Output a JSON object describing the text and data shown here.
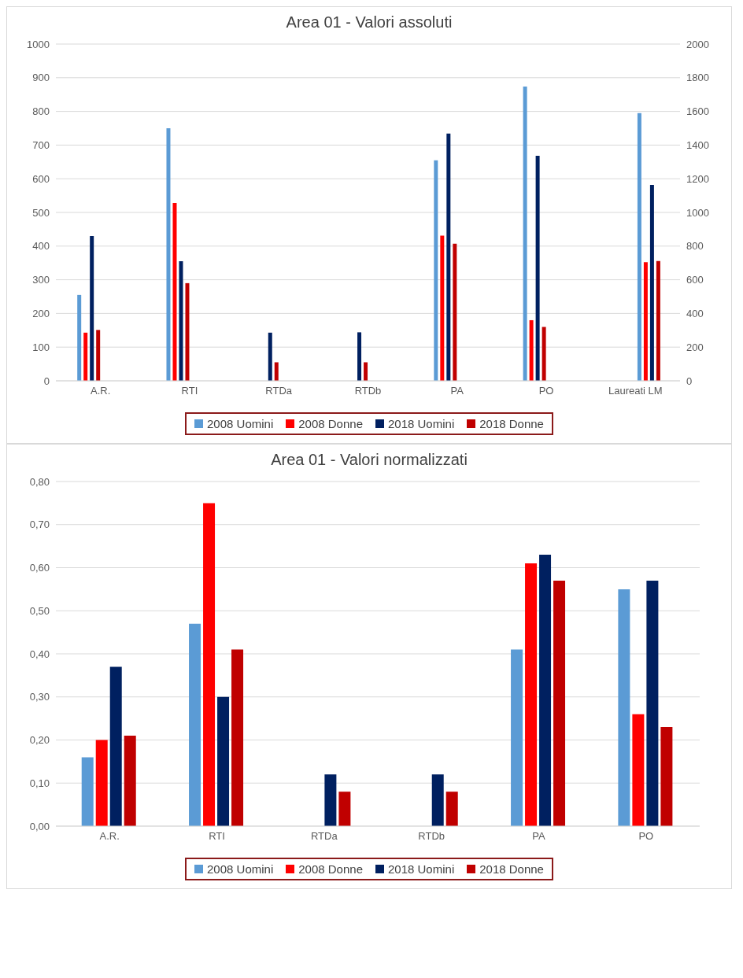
{
  "chart_data": [
    {
      "type": "bar",
      "title": "Area 01 - Valori assoluti",
      "categories": [
        "A.R.",
        "RTI",
        "RTDa",
        "RTDb",
        "PA",
        "PO",
        "Laureati LM"
      ],
      "series": [
        {
          "name": "2008 Uomini",
          "color": "#5b9bd5",
          "values": [
            255,
            750,
            null,
            null,
            655,
            874,
            null
          ]
        },
        {
          "name": "2008 Donne",
          "color": "#ff0000",
          "values": [
            143,
            528,
            null,
            null,
            431,
            180,
            null
          ]
        },
        {
          "name": "2018 Uomini",
          "color": "#002060",
          "values": [
            430,
            355,
            143,
            144,
            734,
            668,
            null
          ]
        },
        {
          "name": "2018 Donne",
          "color": "#c00000",
          "values": [
            151,
            290,
            55,
            55,
            407,
            160,
            null
          ]
        },
        {
          "color": "#5b9bd5",
          "axis": "y2",
          "values": [
            null,
            null,
            null,
            null,
            null,
            null,
            1590
          ]
        },
        {
          "color": "#ff0000",
          "axis": "y2",
          "values": [
            null,
            null,
            null,
            null,
            null,
            null,
            704
          ]
        },
        {
          "color": "#002060",
          "axis": "y2",
          "values": [
            null,
            null,
            null,
            null,
            null,
            null,
            1163
          ]
        },
        {
          "color": "#c00000",
          "axis": "y2",
          "values": [
            null,
            null,
            null,
            null,
            null,
            null,
            711
          ]
        }
      ],
      "ylim": [
        0,
        1000
      ],
      "yticks": [
        0,
        100,
        200,
        300,
        400,
        500,
        600,
        700,
        800,
        900,
        1000
      ],
      "y2lim": [
        0,
        2000
      ],
      "y2ticks": [
        0,
        200,
        400,
        600,
        800,
        1000,
        1200,
        1400,
        1600,
        1800,
        2000
      ],
      "grid": "y",
      "legend": "bottom"
    },
    {
      "type": "bar",
      "title": "Area 01 - Valori normalizzati",
      "categories": [
        "A.R.",
        "RTI",
        "RTDa",
        "RTDb",
        "PA",
        "PO"
      ],
      "series": [
        {
          "name": "2008 Uomini",
          "color": "#5b9bd5",
          "values": [
            0.16,
            0.47,
            null,
            null,
            0.41,
            0.55
          ]
        },
        {
          "name": "2008 Donne",
          "color": "#ff0000",
          "values": [
            0.2,
            0.75,
            null,
            null,
            0.61,
            0.26
          ]
        },
        {
          "name": "2018 Uomini",
          "color": "#002060",
          "values": [
            0.37,
            0.3,
            0.12,
            0.12,
            0.63,
            0.57
          ]
        },
        {
          "name": "2018 Donne",
          "color": "#c00000",
          "values": [
            0.21,
            0.41,
            0.08,
            0.08,
            0.57,
            0.23
          ]
        }
      ],
      "ylim": [
        0,
        0.8
      ],
      "yticks": [
        {
          "value": 0,
          "label": "0,00"
        },
        {
          "value": 0.1,
          "label": "0,10"
        },
        {
          "value": 0.2,
          "label": "0,20"
        },
        {
          "value": 0.3,
          "label": "0,30"
        },
        {
          "value": 0.4,
          "label": "0,40"
        },
        {
          "value": 0.5,
          "label": "0,50"
        },
        {
          "value": 0.6,
          "label": "0,60"
        },
        {
          "value": 0.7,
          "label": "0,70"
        },
        {
          "value": 0.8,
          "label": "0,80"
        }
      ],
      "grid": "y",
      "legend": "bottom"
    }
  ]
}
